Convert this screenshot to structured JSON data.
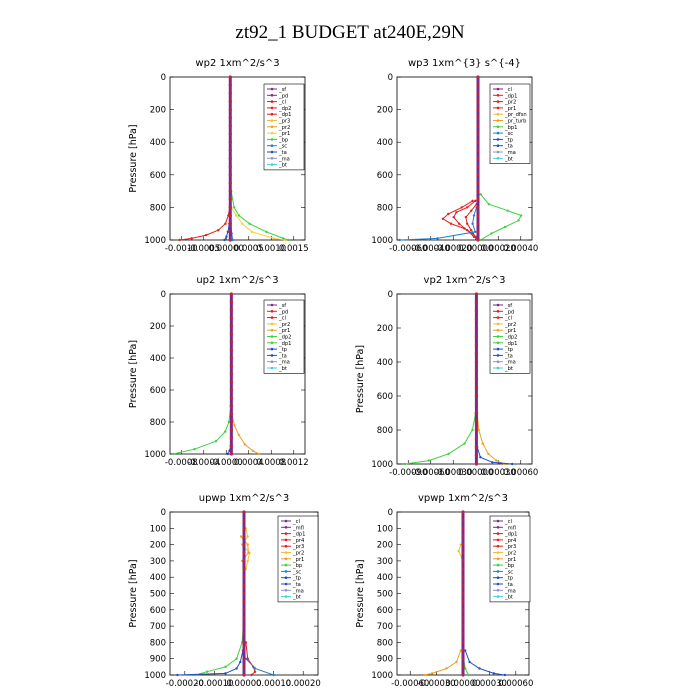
{
  "figure_title": "zt92_1  BUDGET at240E,29N",
  "chart_data": [
    {
      "type": "line",
      "title": "wp2  1xm^2/s^3",
      "ylabel": "Pressure [hPa]",
      "xticks": [
        "-0.0010",
        "-0.0005",
        "0.00000",
        "0.0005",
        "0.0010",
        "0.0015"
      ],
      "xlim": [
        -0.00125,
        0.00155
      ],
      "ylim": [
        1000,
        0
      ],
      "yticks": [
        "0",
        "200",
        "400",
        "600",
        "800",
        "1000"
      ],
      "legend": [
        "_sf",
        "_pd",
        "_cl",
        "_dp2",
        "_dp1",
        "_pr3",
        "_pr2",
        "_pr1",
        "_bp",
        "_sc",
        "_ta",
        "_ma",
        "_bt"
      ],
      "colors": [
        "#7a2a8a",
        "#7a2a8a",
        "#e02020",
        "#e02020",
        "#e02020",
        "#f0c030",
        "#f0a020",
        "#f5d040",
        "#40d040",
        "#2080d0",
        "#2050c0",
        "#9090d0",
        "#40d0e0"
      ],
      "series": [
        {
          "name": "_dp1",
          "p": [
            800,
            850,
            900,
            940,
            970,
            990,
            1000
          ],
          "v": [
            -1e-05,
            -4e-05,
            -0.0001,
            -0.00025,
            -0.0005,
            -0.0008,
            -0.00105
          ]
        },
        {
          "name": "_pr1",
          "p": [
            800,
            850,
            900,
            950,
            990,
            1000
          ],
          "v": [
            2e-05,
            0.00012,
            0.00025,
            0.00045,
            0.0009,
            0.00115
          ]
        },
        {
          "name": "_bp",
          "p": [
            700,
            800,
            850,
            900,
            950,
            990,
            1000
          ],
          "v": [
            2e-05,
            8e-05,
            0.00018,
            0.0004,
            0.00075,
            0.0011,
            0.0012
          ]
        },
        {
          "name": "_ta",
          "p": [
            900,
            950,
            980,
            1000
          ],
          "v": [
            -2e-05,
            -5e-05,
            -8e-05,
            -0.00012
          ]
        },
        {
          "name": "_sc",
          "p": [
            900,
            960,
            1000
          ],
          "v": [
            1e-05,
            3e-05,
            5e-05
          ]
        }
      ]
    },
    {
      "type": "line",
      "title": "wp3  1xm^{3} s^{-4}",
      "ylabel": "",
      "xticks": [
        "-0.00060",
        "-0.00040",
        "-0.00020",
        "0.00000",
        "0.00020",
        "0.00040"
      ],
      "xlim": [
        -0.0006,
        0.0004
      ],
      "ylim": [
        1000,
        0
      ],
      "yticks": [
        "0",
        "200",
        "400",
        "600",
        "800",
        "1000"
      ],
      "legend": [
        "_cl",
        "_dp1",
        "_pr2",
        "_pr1",
        "_pr_dfsn",
        "_pr_turb",
        "_bp1",
        "_sc",
        "_tp",
        "_ta",
        "_ma",
        "_bt"
      ],
      "colors": [
        "#7a2a8a",
        "#e02020",
        "#e02020",
        "#e02020",
        "#f0c030",
        "#f0a020",
        "#40d040",
        "#2080d0",
        "#2050c0",
        "#2050c0",
        "#9090d0",
        "#40d0e0"
      ],
      "series": [
        {
          "name": "_bp1",
          "p": [
            720,
            780,
            820,
            850,
            880,
            920,
            960,
            1000
          ],
          "v": [
            2e-05,
            8e-05,
            0.00022,
            0.00032,
            0.0003,
            0.0002,
            0.0001,
            2e-05
          ]
        },
        {
          "name": "_dp1",
          "p": [
            760,
            800,
            840,
            870,
            900,
            930,
            960,
            1000
          ],
          "v": [
            -4e-05,
            -0.00012,
            -0.00022,
            -0.00026,
            -0.0002,
            -0.0001,
            -4e-05,
            0
          ]
        },
        {
          "name": "_pr2",
          "p": [
            760,
            800,
            830,
            860,
            900,
            940,
            980,
            1000
          ],
          "v": [
            -2e-05,
            -8e-05,
            -0.00016,
            -0.00018,
            -0.00014,
            -8e-05,
            -3e-05,
            0
          ]
        },
        {
          "name": "_pr1",
          "p": [
            780,
            820,
            860,
            900,
            940,
            980,
            1000
          ],
          "v": [
            -1e-05,
            -5e-05,
            -9e-05,
            -8e-05,
            -5e-05,
            -2e-05,
            0
          ]
        },
        {
          "name": "_sc",
          "p": [
            800,
            850,
            900,
            950,
            990,
            1000
          ],
          "v": [
            -1e-05,
            -3e-05,
            -4e-05,
            -2e-05,
            -0.0003,
            -0.00058
          ]
        }
      ]
    },
    {
      "type": "line",
      "title": "up2  1xm^2/s^3",
      "ylabel": "Pressure [hPa]",
      "xticks": [
        "-0.0008",
        "-0.0004",
        "-0.0000",
        "0.0004",
        "0.0008",
        "0.0012"
      ],
      "xlim": [
        -0.001,
        0.0012
      ],
      "ylim": [
        1000,
        0
      ],
      "yticks": [
        "0",
        "200",
        "400",
        "600",
        "800",
        "1000"
      ],
      "legend": [
        "_sf",
        "_pd",
        "_cl",
        "_pr2",
        "_pr1",
        "_dp2",
        "_dp1",
        "_tp",
        "_ta",
        "_ma",
        "_bt"
      ],
      "colors": [
        "#7a2a8a",
        "#e02020",
        "#e02020",
        "#f0c030",
        "#f0a020",
        "#40d040",
        "#40d040",
        "#2050c0",
        "#2050c0",
        "#9090d0",
        "#40d0e0"
      ],
      "series": [
        {
          "name": "_dp1",
          "p": [
            700,
            800,
            860,
            920,
            970,
            1000
          ],
          "v": [
            -1e-05,
            -4e-05,
            -0.0001,
            -0.00025,
            -0.0006,
            -0.00095
          ]
        },
        {
          "name": "_pr1",
          "p": [
            750,
            820,
            880,
            940,
            980,
            1000
          ],
          "v": [
            1e-05,
            5e-05,
            0.00012,
            0.00022,
            0.00035,
            0.00045
          ]
        },
        {
          "name": "_ta",
          "p": [
            950,
            980,
            1000
          ],
          "v": [
            -1e-05,
            -3e-05,
            -6e-05
          ]
        }
      ]
    },
    {
      "type": "line",
      "title": "vp2  1xm^2/s^3",
      "ylabel": "Pressure [hPa]",
      "xticks": [
        "-0.00090",
        "-0.00060",
        "-0.00030",
        "0.00000",
        "0.00030",
        "0.00060"
      ],
      "xlim": [
        -0.001,
        0.0007
      ],
      "ylim": [
        1000,
        0
      ],
      "yticks": [
        "0",
        "200",
        "400",
        "600",
        "800",
        "1000"
      ],
      "legend": [
        "_sf",
        "_pd",
        "_cl",
        "_pr2",
        "_pr1",
        "_dp2",
        "_dp1",
        "_tp",
        "_ta",
        "_ma",
        "_bt"
      ],
      "colors": [
        "#7a2a8a",
        "#e02020",
        "#e02020",
        "#f0c030",
        "#f0a020",
        "#40d040",
        "#40d040",
        "#2050c0",
        "#2050c0",
        "#9090d0",
        "#40d0e0"
      ],
      "series": [
        {
          "name": "_dp1",
          "p": [
            700,
            800,
            880,
            940,
            980,
            1000
          ],
          "v": [
            -1e-05,
            -5e-05,
            -0.00015,
            -0.00035,
            -0.0006,
            -0.0009
          ]
        },
        {
          "name": "_pr1",
          "p": [
            700,
            800,
            880,
            940,
            980,
            1000
          ],
          "v": [
            1e-05,
            3e-05,
            8e-05,
            0.00015,
            0.00025,
            0.00035
          ]
        },
        {
          "name": "_ta",
          "p": [
            900,
            960,
            990,
            1000
          ],
          "v": [
            1e-05,
            5e-05,
            0.0002,
            0.00045
          ]
        }
      ]
    },
    {
      "type": "line",
      "title": "upwp  1xm^2/s^3",
      "ylabel": "Pressure [hPa]",
      "xticks": [
        "-0.00020",
        "-0.00010",
        "0.00000",
        "0.00010",
        "0.00020"
      ],
      "xlim": [
        -0.0002,
        0.0002
      ],
      "ylim": [
        1000,
        0
      ],
      "yticks": [
        "0",
        "100",
        "200",
        "300",
        "400",
        "500",
        "600",
        "700",
        "800",
        "900",
        "1000"
      ],
      "legend": [
        "_cl",
        "_mfl",
        "_dp1",
        "_pr4",
        "_pr3",
        "_pr2",
        "_pr1",
        "_bp",
        "_sc",
        "_tp",
        "_ta",
        "_ma",
        "_bt"
      ],
      "colors": [
        "#7a2a8a",
        "#7a2a8a",
        "#e02020",
        "#e02020",
        "#e02020",
        "#f0c030",
        "#f0a020",
        "#40d040",
        "#2080d0",
        "#2050c0",
        "#2050c0",
        "#9090d0",
        "#40d0e0"
      ],
      "series": [
        {
          "name": "_pr2",
          "p": [
            100,
            150,
            200,
            250,
            300,
            350
          ],
          "v": [
            5e-06,
            1e-05,
            -5e-06,
            1.5e-05,
            1e-05,
            5e-06
          ]
        },
        {
          "name": "_pr1",
          "p": [
            150,
            200,
            250,
            300
          ],
          "v": [
            -8e-06,
            1e-05,
            1.2e-05,
            -5e-06
          ]
        },
        {
          "name": "_bp",
          "p": [
            600,
            800,
            900,
            950,
            980,
            1000
          ],
          "v": [
            1e-06,
            -5e-06,
            -2e-05,
            -5e-05,
            -0.0001,
            -0.00013
          ]
        },
        {
          "name": "_dp1",
          "p": [
            800,
            900,
            950,
            980,
            1000
          ],
          "v": [
            5e-06,
            1e-05,
            2.5e-05,
            3e-05,
            2e-05
          ]
        },
        {
          "name": "_ta",
          "p": [
            850,
            920,
            960,
            990,
            1000
          ],
          "v": [
            -3e-06,
            -1e-05,
            -2e-05,
            -5e-05,
            -0.00018
          ]
        },
        {
          "name": "_sc",
          "p": [
            900,
            960,
            1000
          ],
          "v": [
            5e-06,
            3e-05,
            8e-05
          ]
        }
      ]
    },
    {
      "type": "line",
      "title": "vpwp  1xm^2/s^3",
      "ylabel": "Pressure [hPa]",
      "xticks": [
        "-0.00060",
        "-0.00030",
        "0.00000",
        "0.00030",
        "0.00060"
      ],
      "xlim": [
        -0.0006,
        0.0006
      ],
      "ylim": [
        1000,
        0
      ],
      "yticks": [
        "0",
        "100",
        "200",
        "300",
        "400",
        "500",
        "600",
        "700",
        "800",
        "900",
        "1000"
      ],
      "legend": [
        "_cl",
        "_mfl",
        "_dp1",
        "_pr4",
        "_pr3",
        "_pr2",
        "_pr1",
        "_bp",
        "_sc",
        "_tp",
        "_ta",
        "_ma",
        "_bt"
      ],
      "colors": [
        "#7a2a8a",
        "#7a2a8a",
        "#e02020",
        "#e02020",
        "#e02020",
        "#f0c030",
        "#f0a020",
        "#40d040",
        "#2080d0",
        "#2050c0",
        "#2050c0",
        "#9090d0",
        "#40d0e0"
      ],
      "series": [
        {
          "name": "_pr2",
          "p": [
            200,
            240,
            280
          ],
          "v": [
            -2e-05,
            -4e-05,
            -1e-05
          ]
        },
        {
          "name": "_pr1",
          "p": [
            850,
            920,
            960,
            990,
            1000
          ],
          "v": [
            -2e-05,
            -6e-05,
            -0.00015,
            -0.00028,
            -0.00035
          ]
        },
        {
          "name": "_ta",
          "p": [
            850,
            920,
            960,
            990,
            1000
          ],
          "v": [
            2e-05,
            6e-05,
            0.00015,
            0.00028,
            0.00038
          ]
        },
        {
          "name": "_bp",
          "p": [
            900,
            960,
            1000
          ],
          "v": [
            5e-06,
            2e-05,
            5e-05
          ]
        }
      ]
    }
  ]
}
